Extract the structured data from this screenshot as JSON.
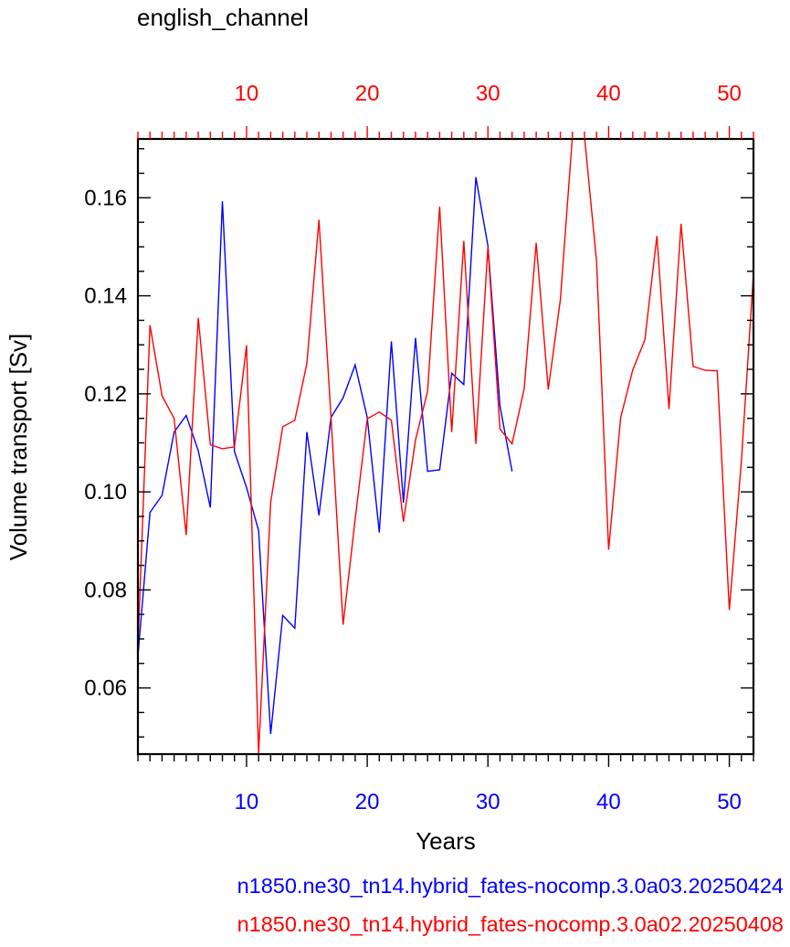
{
  "chart_data": {
    "type": "line",
    "title": "english_channel",
    "xlabel": "Years",
    "ylabel": "Volume transport [Sv]",
    "ylim": [
      0.0465,
      0.172
    ],
    "yticks": [
      0.06,
      0.08,
      0.1,
      0.12,
      0.14,
      0.16
    ],
    "ytick_labels": [
      "0.06",
      "0.08",
      "0.10",
      "0.12",
      "0.14",
      "0.16"
    ],
    "grid": false,
    "legend_placement": "bottom",
    "x_bottom": {
      "range": [
        1,
        52
      ],
      "ticks": [
        10,
        20,
        30,
        40,
        50
      ],
      "tick_labels": [
        "10",
        "20",
        "30",
        "40",
        "50"
      ],
      "color": "#0000ff"
    },
    "x_top": {
      "range": [
        1,
        52
      ],
      "ticks": [
        10,
        20,
        30,
        40,
        50
      ],
      "tick_labels": [
        "10",
        "20",
        "30",
        "40",
        "50"
      ],
      "color": "#ff0000"
    },
    "series": [
      {
        "name": "n1850.ne30_tn14.hybrid_fates-nocomp.3.0a03.20250424",
        "color": "#0000ff",
        "x": [
          1,
          2,
          3,
          4,
          5,
          6,
          7,
          8,
          9,
          10,
          11,
          12,
          13,
          14,
          15,
          16,
          17,
          18,
          19,
          20,
          21,
          22,
          23,
          24,
          25,
          26,
          27,
          28,
          29,
          30,
          31,
          32
        ],
        "values": [
          0.0665,
          0.0958,
          0.0993,
          0.1122,
          0.1156,
          0.1084,
          0.0968,
          0.1593,
          0.1082,
          0.1009,
          0.0921,
          0.0506,
          0.0748,
          0.0722,
          0.1122,
          0.0952,
          0.1152,
          0.1192,
          0.1259,
          0.1152,
          0.0917,
          0.1307,
          0.0978,
          0.1314,
          0.1042,
          0.1045,
          0.1242,
          0.1219,
          0.1642,
          0.1502,
          0.1175,
          0.1042
        ]
      },
      {
        "name": "n1850.ne30_tn14.hybrid_fates-nocomp.3.0a02.20250408",
        "color": "#ff0000",
        "x": [
          1,
          2,
          3,
          4,
          5,
          6,
          7,
          8,
          9,
          10,
          11,
          12,
          13,
          14,
          15,
          16,
          17,
          18,
          19,
          20,
          21,
          22,
          23,
          24,
          25,
          26,
          27,
          28,
          29,
          30,
          31,
          32,
          33,
          34,
          35,
          36,
          37,
          38,
          39,
          40,
          41,
          42,
          43,
          44,
          45,
          46,
          47,
          48,
          49,
          50,
          51,
          52
        ],
        "values": [
          0.0685,
          0.134,
          0.1196,
          0.115,
          0.0912,
          0.1355,
          0.1096,
          0.1088,
          0.1092,
          0.1299,
          0.0466,
          0.0979,
          0.1133,
          0.1146,
          0.1262,
          0.1555,
          0.1152,
          0.0729,
          0.0944,
          0.1149,
          0.1163,
          0.1146,
          0.0939,
          0.1106,
          0.1205,
          0.1582,
          0.1122,
          0.1512,
          0.1098,
          0.15,
          0.1128,
          0.1098,
          0.121,
          0.1508,
          0.1209,
          0.1392,
          0.1725,
          0.1725,
          0.147,
          0.0882,
          0.1152,
          0.1249,
          0.131,
          0.1522,
          0.1169,
          0.1547,
          0.1256,
          0.1248,
          0.1247,
          0.0759,
          0.1063,
          0.1445
        ]
      }
    ]
  }
}
